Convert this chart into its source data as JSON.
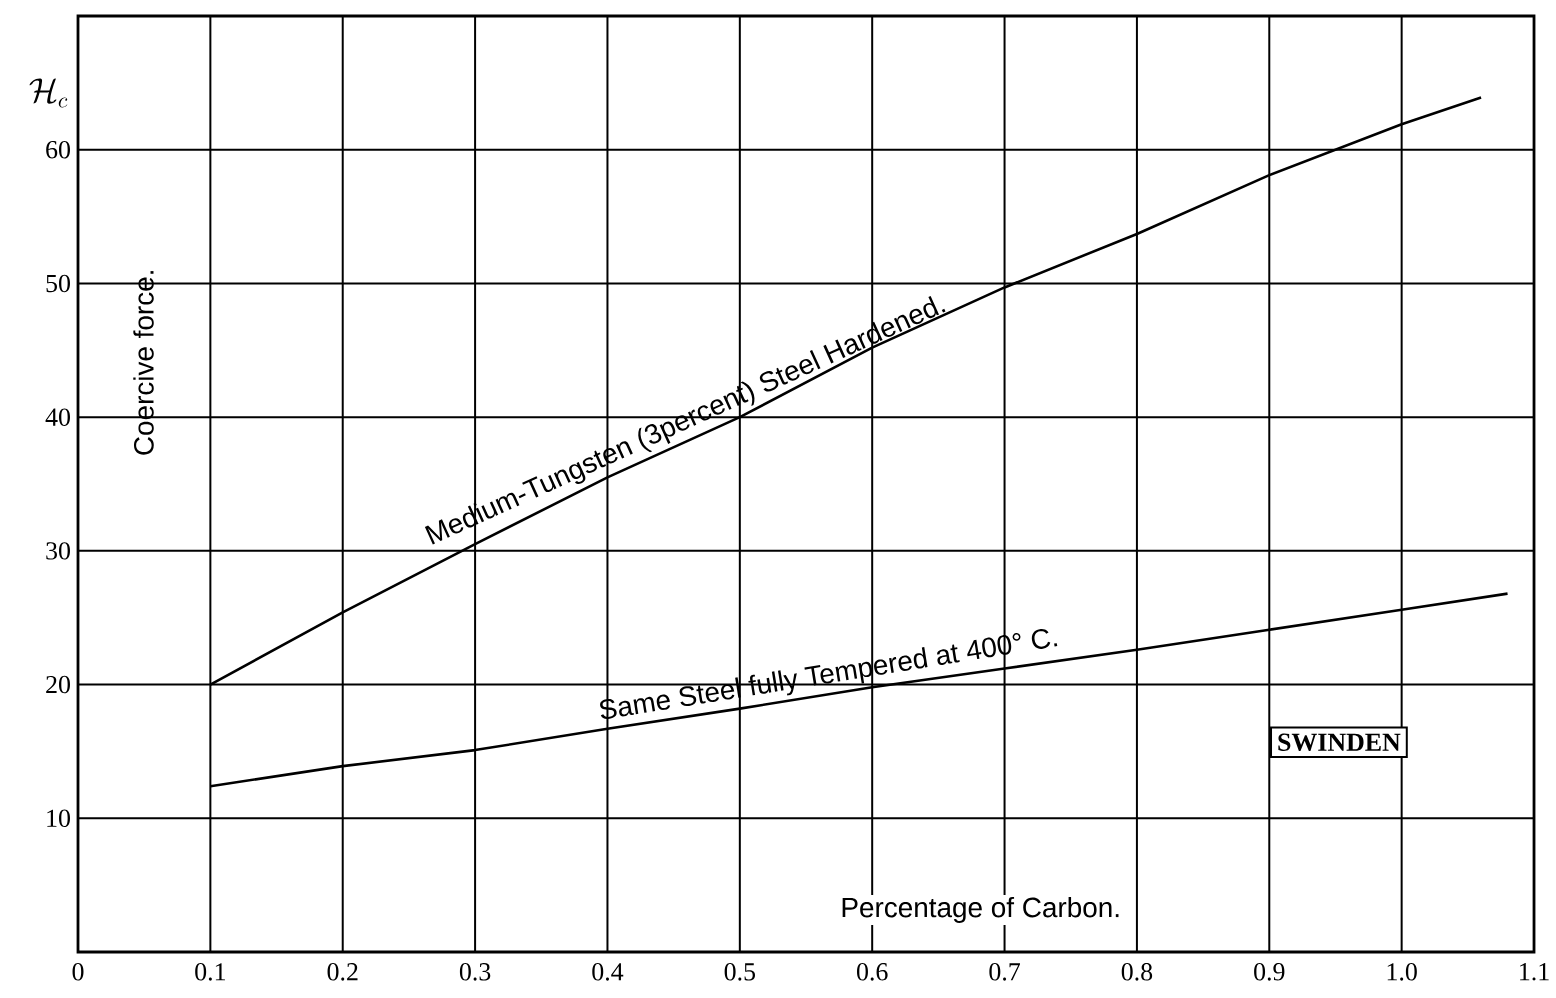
{
  "chart_data": {
    "type": "line",
    "xlabel": "Percentage of Carbon.",
    "ylabel": "Coercive force.",
    "annotations": [
      "\\mathcal{H}_c",
      "SWINDEN"
    ],
    "xlim": [
      0,
      1.1
    ],
    "ylim": [
      0,
      70
    ],
    "xticks": [
      0,
      0.1,
      0.2,
      0.3,
      0.4,
      0.5,
      0.6,
      0.7,
      0.8,
      0.9,
      {
        "value": 1.0,
        "label": "1.0"
      },
      1.1
    ],
    "yticks": [
      10,
      20,
      30,
      40,
      50,
      60
    ],
    "grid": true,
    "series": [
      {
        "name": "Medium-Tungsten (3percent) Steel Hardened.",
        "color": "#000000",
        "x": [
          0.1,
          0.2,
          0.3,
          0.4,
          0.5,
          0.6,
          0.7,
          0.8,
          0.9,
          1.0,
          1.06
        ],
        "values": [
          20,
          25.4,
          30.5,
          35.5,
          40,
          45.2,
          49.7,
          53.7,
          58.1,
          61.9,
          63.9
        ]
      },
      {
        "name": "Same Steel fully Tempered at 400° C.",
        "color": "#000000",
        "x": [
          0.1,
          0.2,
          0.3,
          0.4,
          0.5,
          0.6,
          0.7,
          0.8,
          0.9,
          1.0,
          1.08
        ],
        "values": [
          12.4,
          13.9,
          15.1,
          16.7,
          18.2,
          19.8,
          21.2,
          22.6,
          24.1,
          25.6,
          26.8
        ]
      }
    ]
  }
}
